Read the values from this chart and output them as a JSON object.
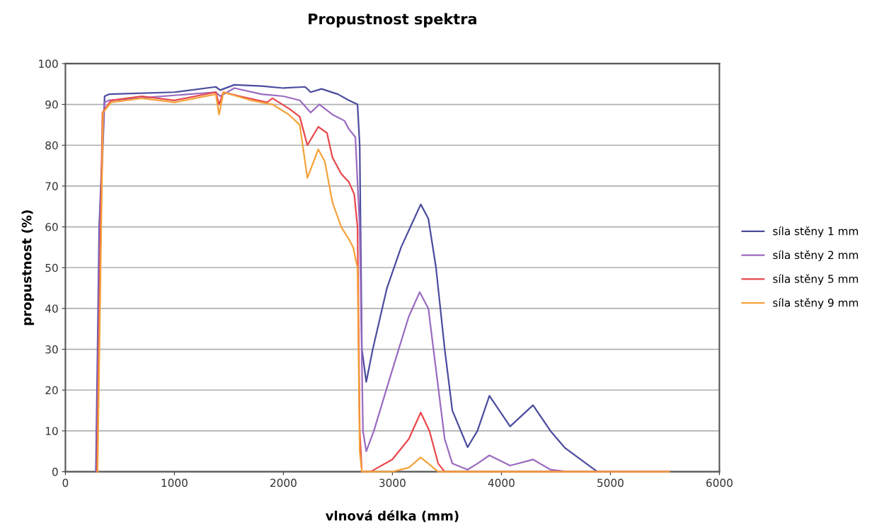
{
  "chart_data": {
    "type": "line",
    "title": "Propustnost spektra",
    "xlabel": "vlnová délka (mm)",
    "ylabel": "propustnost (%)",
    "xlim": [
      0,
      6000
    ],
    "xticks": [
      0,
      1000,
      2000,
      3000,
      4000,
      5000,
      6000
    ],
    "ylim": [
      0,
      100
    ],
    "yticks": [
      0,
      10,
      20,
      30,
      40,
      50,
      60,
      70,
      80,
      90,
      100
    ],
    "grid": "y",
    "legend": "right",
    "marker": "none",
    "line_style": "solid",
    "series": [
      {
        "name": "síla stěny 1 mm",
        "color": "#4b4c9e",
        "x": [
          280,
          310,
          360,
          400,
          1000,
          1380,
          1420,
          1550,
          1800,
          2000,
          2200,
          2250,
          2350,
          2500,
          2600,
          2680,
          2700,
          2720,
          2760,
          2820,
          2950,
          3080,
          3200,
          3260,
          3330,
          3400,
          3480,
          3550,
          3690,
          3780,
          3890,
          4080,
          4290,
          4450,
          4580,
          4880,
          5540
        ],
        "values": [
          0,
          60,
          92,
          92.5,
          93,
          94.3,
          93.5,
          94.8,
          94.5,
          94,
          94.3,
          93,
          93.8,
          92.5,
          91,
          90,
          80,
          30,
          22,
          30,
          45,
          55,
          62,
          65.5,
          62,
          50,
          30,
          15,
          6,
          10,
          18.6,
          11.1,
          16.3,
          10,
          5.9,
          0,
          0
        ]
      },
      {
        "name": "síla stěny 2 mm",
        "color": "#9a6ac0",
        "x": [
          285,
          315,
          360,
          400,
          1380,
          1420,
          1550,
          1800,
          2000,
          2150,
          2250,
          2330,
          2450,
          2560,
          2600,
          2660,
          2700,
          2730,
          2760,
          2830,
          3000,
          3150,
          3250,
          3330,
          3400,
          3480,
          3550,
          3690,
          3780,
          3890,
          4080,
          4290,
          4450,
          4600,
          5540
        ],
        "values": [
          0,
          60,
          90.5,
          91,
          93,
          92,
          94,
          92.5,
          92,
          91,
          88,
          90,
          87.5,
          86,
          84,
          82,
          60,
          10,
          5,
          10,
          25,
          38,
          44,
          40,
          25,
          8,
          2,
          0.5,
          2,
          4,
          1.5,
          3,
          0.5,
          0,
          0
        ]
      },
      {
        "name": "síla stěny 5 mm",
        "color": "#e8474a",
        "x": [
          290,
          340,
          420,
          700,
          1000,
          1380,
          1410,
          1450,
          1600,
          1850,
          1900,
          2050,
          2150,
          2220,
          2320,
          2400,
          2450,
          2530,
          2600,
          2650,
          2680,
          2700,
          2720,
          2800,
          3000,
          3150,
          3260,
          3340,
          3420,
          3480,
          5540
        ],
        "values": [
          0,
          88,
          91,
          92,
          91,
          93,
          90,
          93,
          92,
          90.5,
          91.5,
          89,
          87,
          80,
          84.5,
          83,
          77,
          73,
          71,
          68,
          60,
          10,
          0,
          0,
          3,
          8,
          14.5,
          10,
          2,
          0,
          0
        ]
      },
      {
        "name": "síla stěny 9 mm",
        "color": "#f5a23a",
        "x": [
          295,
          345,
          420,
          700,
          1000,
          1380,
          1410,
          1450,
          1700,
          1900,
          2050,
          2150,
          2220,
          2320,
          2380,
          2450,
          2530,
          2600,
          2640,
          2680,
          2700,
          2720,
          3000,
          3150,
          3260,
          3330,
          3420,
          5540
        ],
        "values": [
          0,
          88,
          90.5,
          91.5,
          90.5,
          92.5,
          87.5,
          93,
          91,
          90,
          87.5,
          85,
          72,
          79,
          76,
          66,
          60,
          57,
          55,
          50,
          5,
          0,
          0,
          1,
          3.5,
          2,
          0,
          0
        ]
      }
    ]
  }
}
